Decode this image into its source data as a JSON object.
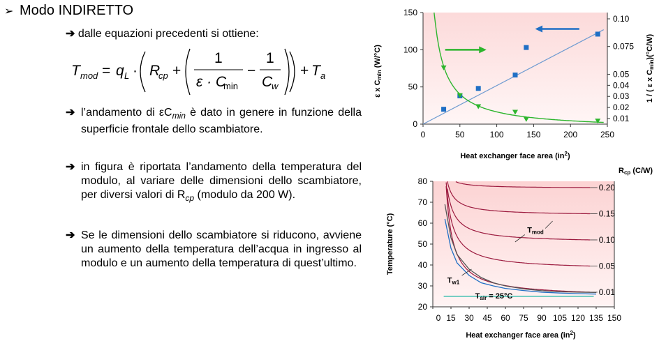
{
  "text": {
    "heading_marker": "➢",
    "heading": "Modo INDIRETTO",
    "arrow": "➔",
    "sub1": "dalle equazioni precedenti si ottiene:",
    "bullets": [
      "l’andamento di εC",
      "in figura è riportata l’andamento della temperatura del modulo, al variare delle dimensioni dello scambiatore, per diversi valori di R",
      "Se le dimensioni dello scambiatore si riducono, avviene un aumento della temperatura dell’acqua in ingresso al modulo e un aumento della temperatura di quest’ultimo."
    ],
    "b1_sub": "min",
    "b1_rest": " è dato in genere in funzione della superficie frontale dello scambiatore.",
    "b2_sub": "cp",
    "b2_rest": " (modulo da 200 W)."
  },
  "formula": {
    "lhs": "T",
    "lhs_sub": "mod",
    "eq": "=",
    "q": "q",
    "q_sub": "L",
    "dot": "·",
    "r": "R",
    "r_sub": "cp",
    "plus": "+",
    "minus": "−",
    "one": "1",
    "den1": "ε · C",
    "den1_sub": "min",
    "den2": "C",
    "den2_sub": "w",
    "ta": "T",
    "ta_sub": "a"
  },
  "chart_data": [
    {
      "type": "scatter",
      "xlabel": "Heat exchanger face area (in",
      "xlabel_sup": "2",
      "xlabel_end": ")",
      "ylabel": "ε x C",
      "ylabel_sub": "min",
      "ylabel_end": " (W/°C)",
      "y2label": "1 / ( ε x C",
      "y2label_sub": "min",
      "y2label_end": ")(°C/W)",
      "xlim": [
        0,
        250
      ],
      "ylim": [
        0,
        150
      ],
      "xticks": [
        "0",
        "50",
        "100",
        "150",
        "200",
        "250"
      ],
      "yticks": [
        "0",
        "50",
        "100",
        "150"
      ],
      "y2ticks": [
        "0.01",
        "0.02",
        "0.03",
        "0.04",
        "0.05",
        "0.075",
        "0.10"
      ],
      "y2tick_values": [
        0.01,
        0.02,
        0.03,
        0.04,
        0.05,
        0.075,
        0.1
      ],
      "series": [
        {
          "x": [
            28,
            50,
            75,
            125,
            140,
            237
          ],
          "y": [
            20,
            38,
            48,
            66,
            103,
            121
          ],
          "color": "#1f6fc5",
          "marker": "square"
        },
        {
          "x": [
            28,
            50,
            75,
            125,
            140,
            237
          ],
          "y": [
            0.056,
            0.031,
            0.021,
            0.016,
            0.0095,
            0.008
          ],
          "color": "#2db52d",
          "marker": "triangle-down"
        }
      ],
      "fit_line": {
        "x": [
          0,
          245
        ],
        "y": [
          0,
          127
        ],
        "color": "#6f9bd1"
      },
      "fit_curve": {
        "color": "#2db52d"
      },
      "arrows": [
        {
          "direction": "left",
          "color": "#1f6fc5"
        },
        {
          "direction": "right",
          "color": "#2db52d"
        }
      ],
      "background": "#fde7e7"
    },
    {
      "type": "line",
      "xlabel": "Heat exchanger face area (in",
      "xlabel_sup": "2",
      "xlabel_end": ")",
      "ylabel": "Temperature (°C)",
      "legend_title": "R",
      "legend_title_sub": "cp",
      "legend_title_end": " (C/W)",
      "xlim": [
        0,
        150
      ],
      "ylim": [
        20,
        80
      ],
      "xticks": [
        "0",
        "15",
        "30",
        "45",
        "60",
        "75",
        "90",
        "105",
        "120",
        "135",
        "150"
      ],
      "yticks": [
        "20",
        "30",
        "40",
        "50",
        "60",
        "70",
        "80"
      ],
      "rcp_values": [
        "0.20",
        "0.15",
        "0.10",
        "0.05",
        "0.01"
      ],
      "curves_y_right": [
        77,
        64.5,
        52,
        39.5,
        27
      ],
      "annotations": {
        "tmod": "T",
        "tmod_sub": "mod",
        "tw": "T",
        "tw_sub": "w1",
        "tair": "T",
        "tair_sub": "air",
        "tair_end": " = 25°C"
      },
      "tw_curve": {
        "x": [
          10,
          15,
          20,
          30,
          40,
          50,
          60,
          75,
          90,
          105,
          120,
          135
        ],
        "y": [
          62,
          48,
          41,
          35,
          31.5,
          30,
          28.8,
          27.8,
          27,
          26.6,
          26.3,
          26.1
        ]
      },
      "tmod_curve": {
        "x": [
          10,
          15,
          20,
          30,
          40,
          50,
          60,
          75,
          90,
          105,
          120,
          135
        ],
        "y": [
          69,
          53,
          45,
          38,
          34,
          31.5,
          30,
          28.6,
          27.7,
          27.2,
          27,
          26.9
        ]
      },
      "tair_value": 25,
      "curve_color": "#9c1b3f",
      "tw_color": "#1f6fc5",
      "tair_color": "#26b9a8",
      "background": "#fde1e1"
    }
  ]
}
